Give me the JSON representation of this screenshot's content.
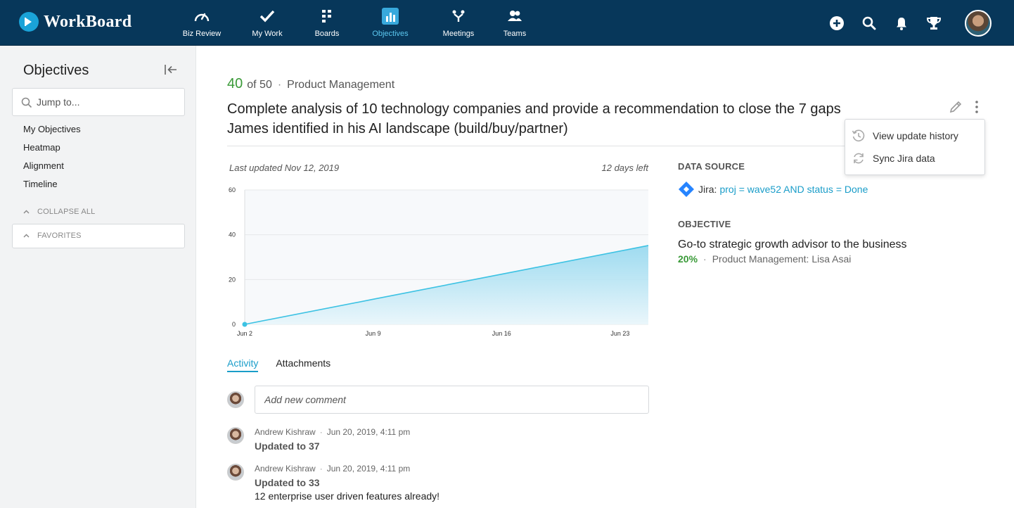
{
  "app": {
    "name": "WorkBoard"
  },
  "nav": {
    "items": [
      {
        "label": "Biz Review",
        "icon": "gauge-icon"
      },
      {
        "label": "My Work",
        "icon": "checkmark-icon"
      },
      {
        "label": "Boards",
        "icon": "boards-icon"
      },
      {
        "label": "Objectives",
        "icon": "bar-chart-icon",
        "active": true
      },
      {
        "label": "Meetings",
        "icon": "meetings-icon"
      },
      {
        "label": "Teams",
        "icon": "people-icon"
      }
    ],
    "actions": [
      "add-icon",
      "search-icon",
      "bell-icon",
      "trophy-icon"
    ]
  },
  "sidebar": {
    "title": "Objectives",
    "search_placeholder": "Jump to...",
    "links": [
      "My Objectives",
      "Heatmap",
      "Alignment",
      "Timeline"
    ],
    "collapse_all": "COLLAPSE ALL",
    "favorites": "FAVORITES"
  },
  "key_result": {
    "current": "40",
    "of_target": "of 50",
    "separator": "·",
    "team": "Product Management",
    "title": "Complete analysis of 10 technology companies and provide a recommendation to close the 7 gaps James identified in his AI landscape (build/buy/partner)",
    "last_updated": "Last updated Nov 12, 2019",
    "days_left": "12 days left"
  },
  "chart_data": {
    "type": "area",
    "x": [
      "Jun 2",
      "Jun 9",
      "Jun 16",
      "Jun 23",
      "Jun 24"
    ],
    "x_tick_labels": [
      "Jun 2",
      "Jun 9",
      "Jun 16",
      "Jun 23"
    ],
    "x_days": [
      0,
      7,
      14,
      21,
      22
    ],
    "y": [
      0,
      11.2,
      22.4,
      33.6,
      35.2
    ],
    "y_ticks": [
      0,
      20,
      40,
      60
    ],
    "ylim": [
      0,
      60
    ],
    "grid": true,
    "title": "",
    "xlabel": "",
    "ylabel": "",
    "colors": {
      "line": "#3cc2e3",
      "fill_top": "#8fd6ee",
      "fill_bottom": "#e9f6fb",
      "plot_bg": "#f7f9fb"
    }
  },
  "tabs": [
    {
      "label": "Activity",
      "active": true
    },
    {
      "label": "Attachments",
      "active": false
    }
  ],
  "comment": {
    "placeholder": "Add new comment"
  },
  "activity": [
    {
      "author": "Andrew Kishraw",
      "time": "Jun 20, 2019, 4:11 pm",
      "update": "Updated to 37",
      "text": ""
    },
    {
      "author": "Andrew Kishraw",
      "time": "Jun 20, 2019, 4:11 pm",
      "update": "Updated to 33",
      "text": "12 enterprise user driven features already!"
    }
  ],
  "data_source": {
    "label": "DATA SOURCE",
    "source": "Jira:",
    "query": "proj = wave52 AND status = Done"
  },
  "objective": {
    "label": "OBJECTIVE",
    "title": "Go-to strategic growth advisor to the business",
    "percent": "20%",
    "owner": "Product Management: Lisa Asai"
  },
  "menu": {
    "items": [
      {
        "label": "View update history",
        "icon": "history-icon"
      },
      {
        "label": "Sync Jira data",
        "icon": "sync-icon"
      }
    ]
  },
  "colors": {
    "nav_bg": "#07375a",
    "accent": "#1a9dc9",
    "green": "#3a9a38"
  }
}
